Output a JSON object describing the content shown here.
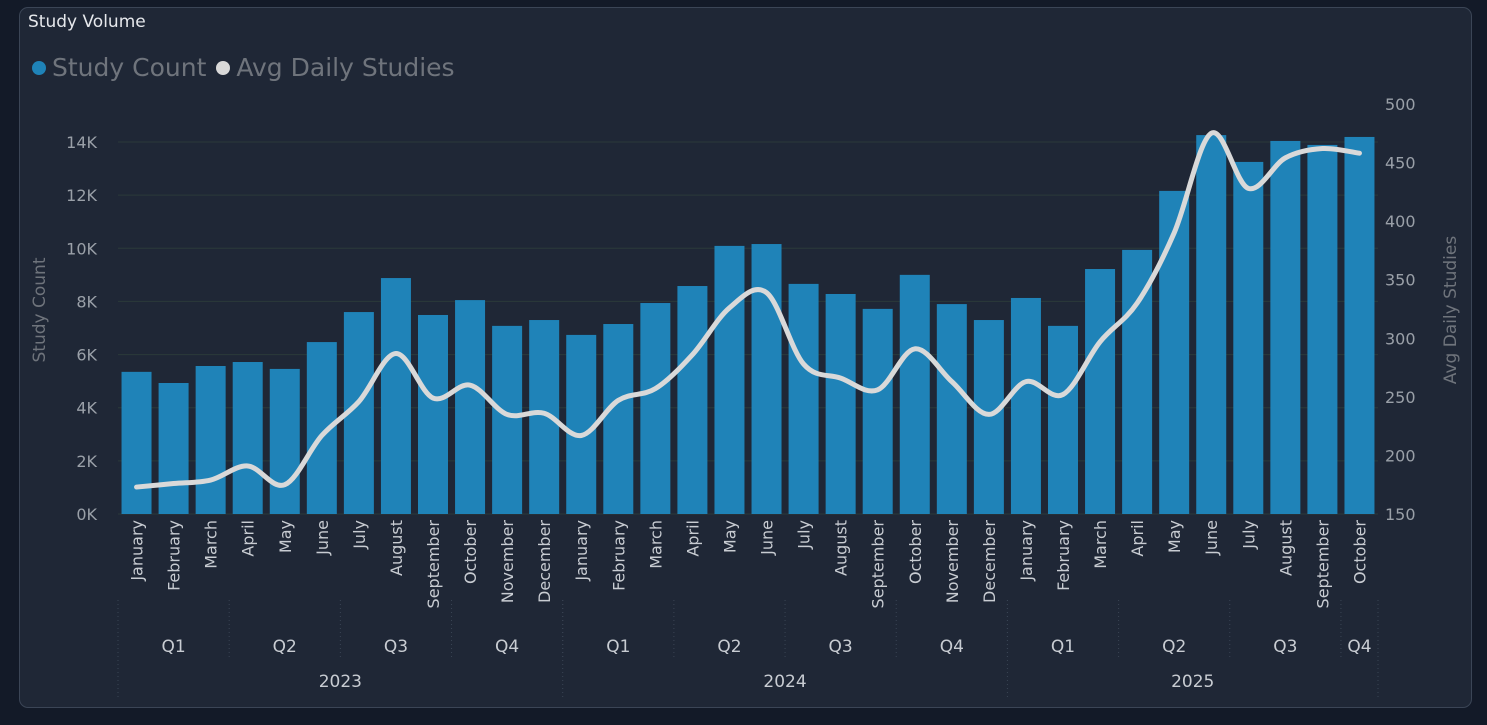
{
  "title": "Study Volume",
  "legend": [
    {
      "label": "Study Count",
      "color": "#1f83b8"
    },
    {
      "label": "Avg Daily Studies",
      "color": "#d9d9d9"
    }
  ],
  "chart_data": {
    "type": "bar+line",
    "title": "Study Volume",
    "categories": [
      "January",
      "February",
      "March",
      "April",
      "May",
      "June",
      "July",
      "August",
      "September",
      "October",
      "November",
      "December",
      "January",
      "February",
      "March",
      "April",
      "May",
      "June",
      "July",
      "August",
      "September",
      "October",
      "November",
      "December",
      "January",
      "February",
      "March",
      "April",
      "May",
      "June",
      "July",
      "August",
      "September",
      "October"
    ],
    "quarters": [
      {
        "label": "Q1",
        "year": "2023",
        "months": 3
      },
      {
        "label": "Q2",
        "year": "2023",
        "months": 3
      },
      {
        "label": "Q3",
        "year": "2023",
        "months": 3
      },
      {
        "label": "Q4",
        "year": "2023",
        "months": 3
      },
      {
        "label": "Q1",
        "year": "2024",
        "months": 3
      },
      {
        "label": "Q2",
        "year": "2024",
        "months": 3
      },
      {
        "label": "Q3",
        "year": "2024",
        "months": 3
      },
      {
        "label": "Q4",
        "year": "2024",
        "months": 3
      },
      {
        "label": "Q1",
        "year": "2025",
        "months": 3
      },
      {
        "label": "Q2",
        "year": "2025",
        "months": 3
      },
      {
        "label": "Q3",
        "year": "2025",
        "months": 3
      },
      {
        "label": "Q4",
        "year": "2025",
        "months": 1
      }
    ],
    "years": [
      {
        "label": "2023",
        "months": 12
      },
      {
        "label": "2024",
        "months": 12
      },
      {
        "label": "2025",
        "months": 10
      }
    ],
    "series": [
      {
        "name": "Study Count",
        "type": "bar",
        "axis": "left",
        "color": "#1f83b8",
        "values": [
          5350,
          4930,
          5570,
          5720,
          5460,
          6470,
          7600,
          8880,
          7490,
          8050,
          7080,
          7300,
          6740,
          7150,
          7940,
          8580,
          10090,
          10160,
          8660,
          8280,
          7720,
          9000,
          7900,
          7300,
          8130,
          7080,
          9220,
          9940,
          12160,
          14260,
          13250,
          14040,
          13890,
          14190
        ]
      },
      {
        "name": "Avg Daily Studies",
        "type": "line",
        "axis": "right",
        "color": "#d9d9d9",
        "values": [
          173,
          176,
          179,
          191,
          175,
          217,
          246,
          287,
          249,
          260,
          235,
          236,
          217,
          247,
          257,
          286,
          326,
          339,
          278,
          266,
          256,
          291,
          263,
          235,
          263,
          252,
          297,
          330,
          390,
          475,
          428,
          454,
          462,
          458
        ]
      }
    ],
    "ylabel": "Study Count",
    "y2label": "Avg Daily Studies",
    "ylim": [
      0,
      14000
    ],
    "yticks": [
      "0K",
      "2K",
      "4K",
      "6K",
      "8K",
      "10K",
      "12K",
      "14K"
    ],
    "y2lim": [
      150,
      500
    ],
    "y2ticks": [
      "150",
      "200",
      "250",
      "300",
      "350",
      "400",
      "450",
      "500"
    ],
    "grid": true,
    "legend_position": "top-left"
  }
}
